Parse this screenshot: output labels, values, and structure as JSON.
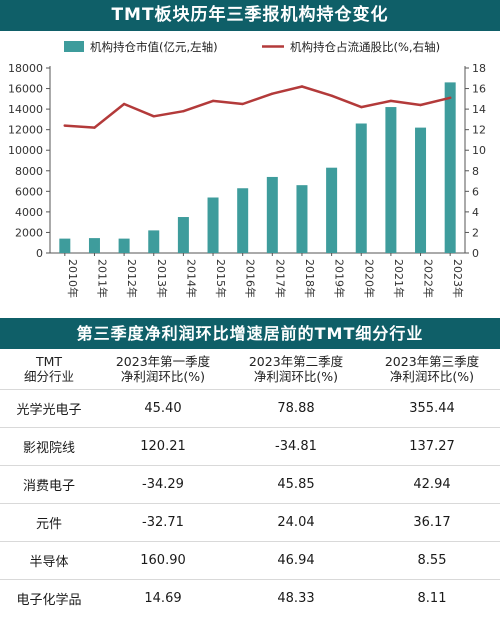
{
  "top_title": "TMT板块历年三季报机构持仓变化",
  "table_title": "第三季度净利润环比增速居前的TMT细分行业",
  "colors": {
    "banner": "#0f5f68",
    "bar": "#3e9c9c",
    "line": "#b33a3a"
  },
  "chart_data": {
    "type": "bar+line",
    "categories": [
      "2010年",
      "2011年",
      "2012年",
      "2013年",
      "2014年",
      "2015年",
      "2016年",
      "2017年",
      "2018年",
      "2019年",
      "2020年",
      "2021年",
      "2022年",
      "2023年"
    ],
    "series": [
      {
        "name": "机构持仓市值(亿元,左轴)",
        "type": "bar",
        "axis": "left",
        "values": [
          1400,
          1450,
          1400,
          2200,
          3500,
          5400,
          6300,
          7400,
          6600,
          8300,
          12600,
          14200,
          12200,
          16600
        ]
      },
      {
        "name": "机构持仓占流通股比(%,右轴)",
        "type": "line",
        "axis": "right",
        "values": [
          12.4,
          12.2,
          14.5,
          13.3,
          13.8,
          14.8,
          14.5,
          15.5,
          16.2,
          15.3,
          14.2,
          14.8,
          14.4,
          15.1
        ]
      }
    ],
    "left_axis": {
      "min": 0,
      "max": 18000,
      "ticks": [
        0,
        2000,
        4000,
        6000,
        8000,
        10000,
        12000,
        14000,
        16000,
        18000
      ]
    },
    "right_axis": {
      "min": 0,
      "max": 18,
      "ticks": [
        0,
        2,
        4,
        6,
        8,
        10,
        12,
        14,
        16,
        18
      ]
    },
    "legend_position": "top",
    "grid": false
  },
  "table": {
    "headers": [
      "TMT\n细分行业",
      "2023年第一季度\n净利润环比(%)",
      "2023年第二季度\n净利润环比(%)",
      "2023年第三季度\n净利润环比(%)"
    ],
    "rows": [
      [
        "光学光电子",
        "45.40",
        "78.88",
        "355.44"
      ],
      [
        "影视院线",
        "120.21",
        "-34.81",
        "137.27"
      ],
      [
        "消费电子",
        "-34.29",
        "45.85",
        "42.94"
      ],
      [
        "元件",
        "-32.71",
        "24.04",
        "36.17"
      ],
      [
        "半导体",
        "160.90",
        "46.94",
        "8.55"
      ],
      [
        "电子化学品",
        "14.69",
        "48.33",
        "8.11"
      ]
    ]
  }
}
